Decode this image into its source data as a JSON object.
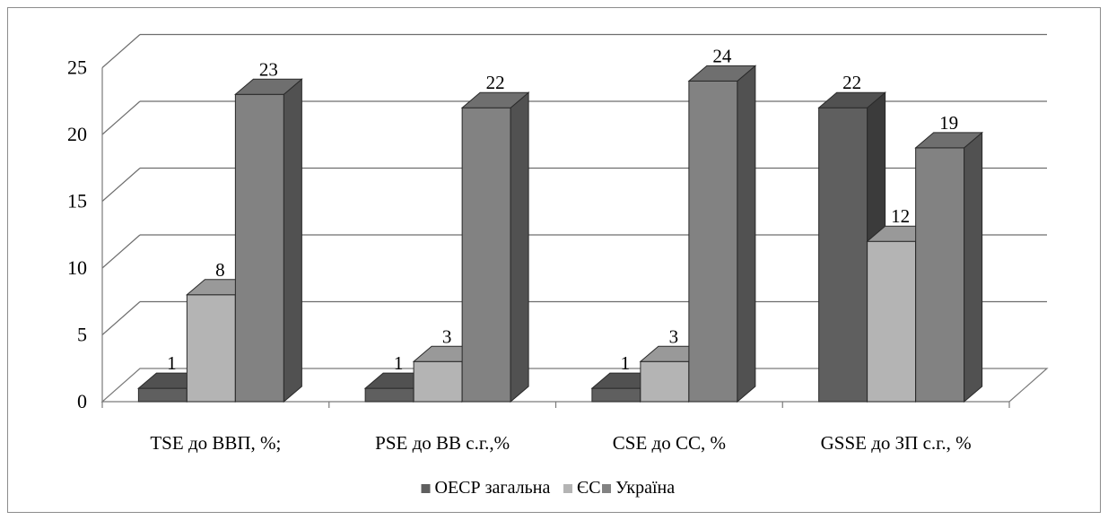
{
  "chart_data": {
    "type": "bar",
    "subtype": "3d-clustered-column",
    "title": "",
    "xlabel": "",
    "ylabel": "",
    "categories": [
      "TSE до ВВП, %;",
      "PSE до ВВ с.г.,%",
      "CSE до СС, %",
      "GSSE до ЗП с.г., %"
    ],
    "series": [
      {
        "name": "ОЕСР загальна",
        "values": [
          1,
          1,
          1,
          22
        ],
        "color": "#5f5f5f"
      },
      {
        "name": "ЄС",
        "values": [
          8,
          3,
          3,
          12
        ],
        "color": "#b4b4b4"
      },
      {
        "name": "Україна",
        "values": [
          23,
          22,
          24,
          19
        ],
        "color": "#828282"
      }
    ],
    "yticks": [
      0,
      5,
      10,
      15,
      20,
      25
    ],
    "ylim": [
      0,
      25
    ],
    "grid": true,
    "legend": "bottom"
  }
}
